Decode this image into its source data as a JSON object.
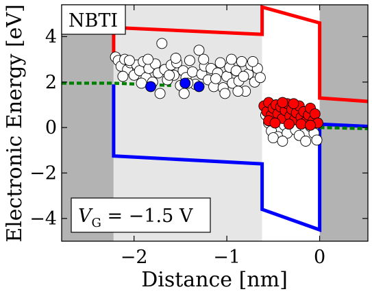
{
  "chart_data": {
    "type": "scatter",
    "xlabel": "Distance [nm]",
    "ylabel": "Electronic Energy [eV]",
    "xlim": [
      -2.78,
      0.52
    ],
    "ylim": [
      -5.0,
      5.4
    ],
    "xticks": [
      -2,
      -1,
      0
    ],
    "yticks": [
      -4,
      -2,
      0,
      2,
      4
    ],
    "xtick_labels": [
      "−2",
      "−1",
      "0"
    ],
    "ytick_labels": [
      "−4",
      "−2",
      "0",
      "2",
      "4"
    ],
    "annotations": {
      "tag": "NBTI",
      "bias_symbol": "V",
      "bias_subscript": "G",
      "bias_value": " = −1.5 V"
    },
    "regions": [
      {
        "name": "gate",
        "x": [
          -2.78,
          -2.22
        ],
        "fill": "#b3b3b3"
      },
      {
        "name": "gate-oxide-1",
        "x": [
          -2.22,
          -0.62
        ],
        "fill": "#e6e6e6"
      },
      {
        "name": "gate-oxide-2",
        "x": [
          -0.62,
          0.0
        ],
        "fill": "#ffffff"
      },
      {
        "name": "substrate",
        "x": [
          0.0,
          0.52
        ],
        "fill": "#b3b3b3"
      }
    ],
    "series": [
      {
        "kind": "line",
        "color": "#ff0000",
        "points": [
          [
            -2.22,
            3.05
          ],
          [
            -2.22,
            4.4
          ],
          [
            -0.62,
            4.1
          ],
          [
            -0.62,
            5.3
          ],
          [
            0.0,
            4.6
          ],
          [
            0.0,
            1.3
          ],
          [
            0.52,
            1.15
          ]
        ]
      },
      {
        "kind": "line",
        "color": "#0000ff",
        "points": [
          [
            -2.22,
            1.9
          ],
          [
            -2.22,
            -1.25
          ],
          [
            -0.62,
            -1.6
          ],
          [
            -0.62,
            -3.6
          ],
          [
            0.0,
            -4.5
          ],
          [
            0.0,
            0.15
          ],
          [
            0.52,
            0.05
          ]
        ]
      },
      {
        "kind": "dashed",
        "color": "#008000",
        "points": [
          [
            -2.78,
            1.95
          ],
          [
            -2.22,
            1.95
          ],
          [
            -1.6,
            1.85
          ]
        ],
        "points_right": [
          [
            0.0,
            0.0
          ],
          [
            0.52,
            -0.05
          ]
        ]
      },
      {
        "kind": "scatter",
        "fill": "#ffffff",
        "points": [
          [
            -2.2,
            3.1
          ],
          [
            -2.17,
            2.95
          ],
          [
            -2.14,
            2.7
          ],
          [
            -2.1,
            3.0
          ],
          [
            -2.07,
            2.55
          ],
          [
            -2.04,
            2.85
          ],
          [
            -2.0,
            2.3
          ],
          [
            -1.97,
            2.75
          ],
          [
            -1.94,
            2.5
          ],
          [
            -1.9,
            2.9
          ],
          [
            -1.87,
            2.2
          ],
          [
            -1.84,
            2.6
          ],
          [
            -1.8,
            2.0
          ],
          [
            -1.77,
            2.8
          ],
          [
            -1.74,
            2.4
          ],
          [
            -1.7,
            3.7
          ],
          [
            -1.67,
            2.55
          ],
          [
            -1.64,
            2.1
          ],
          [
            -1.6,
            2.75
          ],
          [
            -1.57,
            2.3
          ],
          [
            -1.54,
            2.85
          ],
          [
            -1.5,
            1.85
          ],
          [
            -1.47,
            2.5
          ],
          [
            -1.44,
            2.2
          ],
          [
            -1.4,
            2.95
          ],
          [
            -1.37,
            2.45
          ],
          [
            -1.34,
            1.9
          ],
          [
            -1.3,
            3.4
          ],
          [
            -1.27,
            2.35
          ],
          [
            -1.24,
            2.7
          ],
          [
            -1.2,
            2.1
          ],
          [
            -1.17,
            2.6
          ],
          [
            -1.14,
            1.8
          ],
          [
            -1.1,
            2.4
          ],
          [
            -1.07,
            2.85
          ],
          [
            -1.04,
            1.75
          ],
          [
            -1.0,
            2.25
          ],
          [
            -0.97,
            2.65
          ],
          [
            -0.94,
            1.95
          ],
          [
            -0.9,
            2.5
          ],
          [
            -0.87,
            2.05
          ],
          [
            -0.84,
            2.9
          ],
          [
            -0.8,
            1.6
          ],
          [
            -0.77,
            2.35
          ],
          [
            -0.74,
            2.75
          ],
          [
            -0.7,
            2.0
          ],
          [
            -0.67,
            2.6
          ],
          [
            -0.64,
            2.2
          ],
          [
            -1.85,
            3.0
          ],
          [
            -2.05,
            2.95
          ],
          [
            -1.55,
            3.05
          ],
          [
            -1.25,
            3.0
          ],
          [
            -0.95,
            3.0
          ],
          [
            -0.72,
            2.9
          ],
          [
            -1.62,
            2.3
          ],
          [
            -1.42,
            1.95
          ],
          [
            -1.12,
            2.15
          ],
          [
            -0.82,
            2.25
          ],
          [
            -2.12,
            2.25
          ],
          [
            -1.92,
            1.95
          ],
          [
            -1.72,
            1.5
          ],
          [
            -1.46,
            1.5
          ],
          [
            -1.02,
            1.5
          ],
          [
            -0.88,
            1.6
          ],
          [
            -0.58,
            0.55
          ],
          [
            -0.55,
            0.2
          ],
          [
            -0.52,
            -0.15
          ],
          [
            -0.48,
            0.6
          ],
          [
            -0.45,
            -0.4
          ],
          [
            -0.42,
            0.35
          ],
          [
            -0.38,
            0.1
          ],
          [
            -0.35,
            -0.25
          ],
          [
            -0.3,
            0.5
          ],
          [
            -0.26,
            -0.1
          ],
          [
            -0.22,
            -0.35
          ],
          [
            -0.18,
            0.3
          ],
          [
            -0.15,
            -0.6
          ],
          [
            -0.1,
            0.05
          ],
          [
            -0.06,
            -0.25
          ],
          [
            -0.03,
            -0.55
          ],
          [
            -0.5,
            -0.45
          ],
          [
            -0.4,
            -0.6
          ]
        ]
      },
      {
        "kind": "scatter",
        "fill": "#0000ff",
        "points": [
          [
            -1.82,
            1.8
          ],
          [
            -1.45,
            1.95
          ],
          [
            -1.3,
            1.8
          ]
        ]
      },
      {
        "kind": "scatter",
        "fill": "#ff0000",
        "points": [
          [
            -0.6,
            0.95
          ],
          [
            -0.57,
            0.7
          ],
          [
            -0.55,
            1.1
          ],
          [
            -0.52,
            0.55
          ],
          [
            -0.5,
            0.85
          ],
          [
            -0.47,
            1.0
          ],
          [
            -0.45,
            0.6
          ],
          [
            -0.42,
            0.9
          ],
          [
            -0.4,
            0.4
          ],
          [
            -0.37,
            0.75
          ],
          [
            -0.35,
            1.05
          ],
          [
            -0.32,
            0.5
          ],
          [
            -0.3,
            0.8
          ],
          [
            -0.27,
            0.35
          ],
          [
            -0.25,
            0.65
          ],
          [
            -0.22,
            0.95
          ],
          [
            -0.2,
            0.45
          ],
          [
            -0.17,
            0.7
          ],
          [
            -0.15,
            0.25
          ],
          [
            -0.12,
            0.55
          ],
          [
            -0.1,
            0.85
          ],
          [
            -0.07,
            0.3
          ],
          [
            -0.05,
            0.6
          ],
          [
            -0.02,
            0.2
          ],
          [
            -0.55,
            0.3
          ],
          [
            -0.48,
            0.2
          ],
          [
            -0.4,
            1.1
          ],
          [
            -0.33,
            0.15
          ],
          [
            -0.28,
            1.05
          ],
          [
            -0.2,
            0.15
          ],
          [
            -0.1,
            0.1
          ]
        ]
      }
    ]
  }
}
